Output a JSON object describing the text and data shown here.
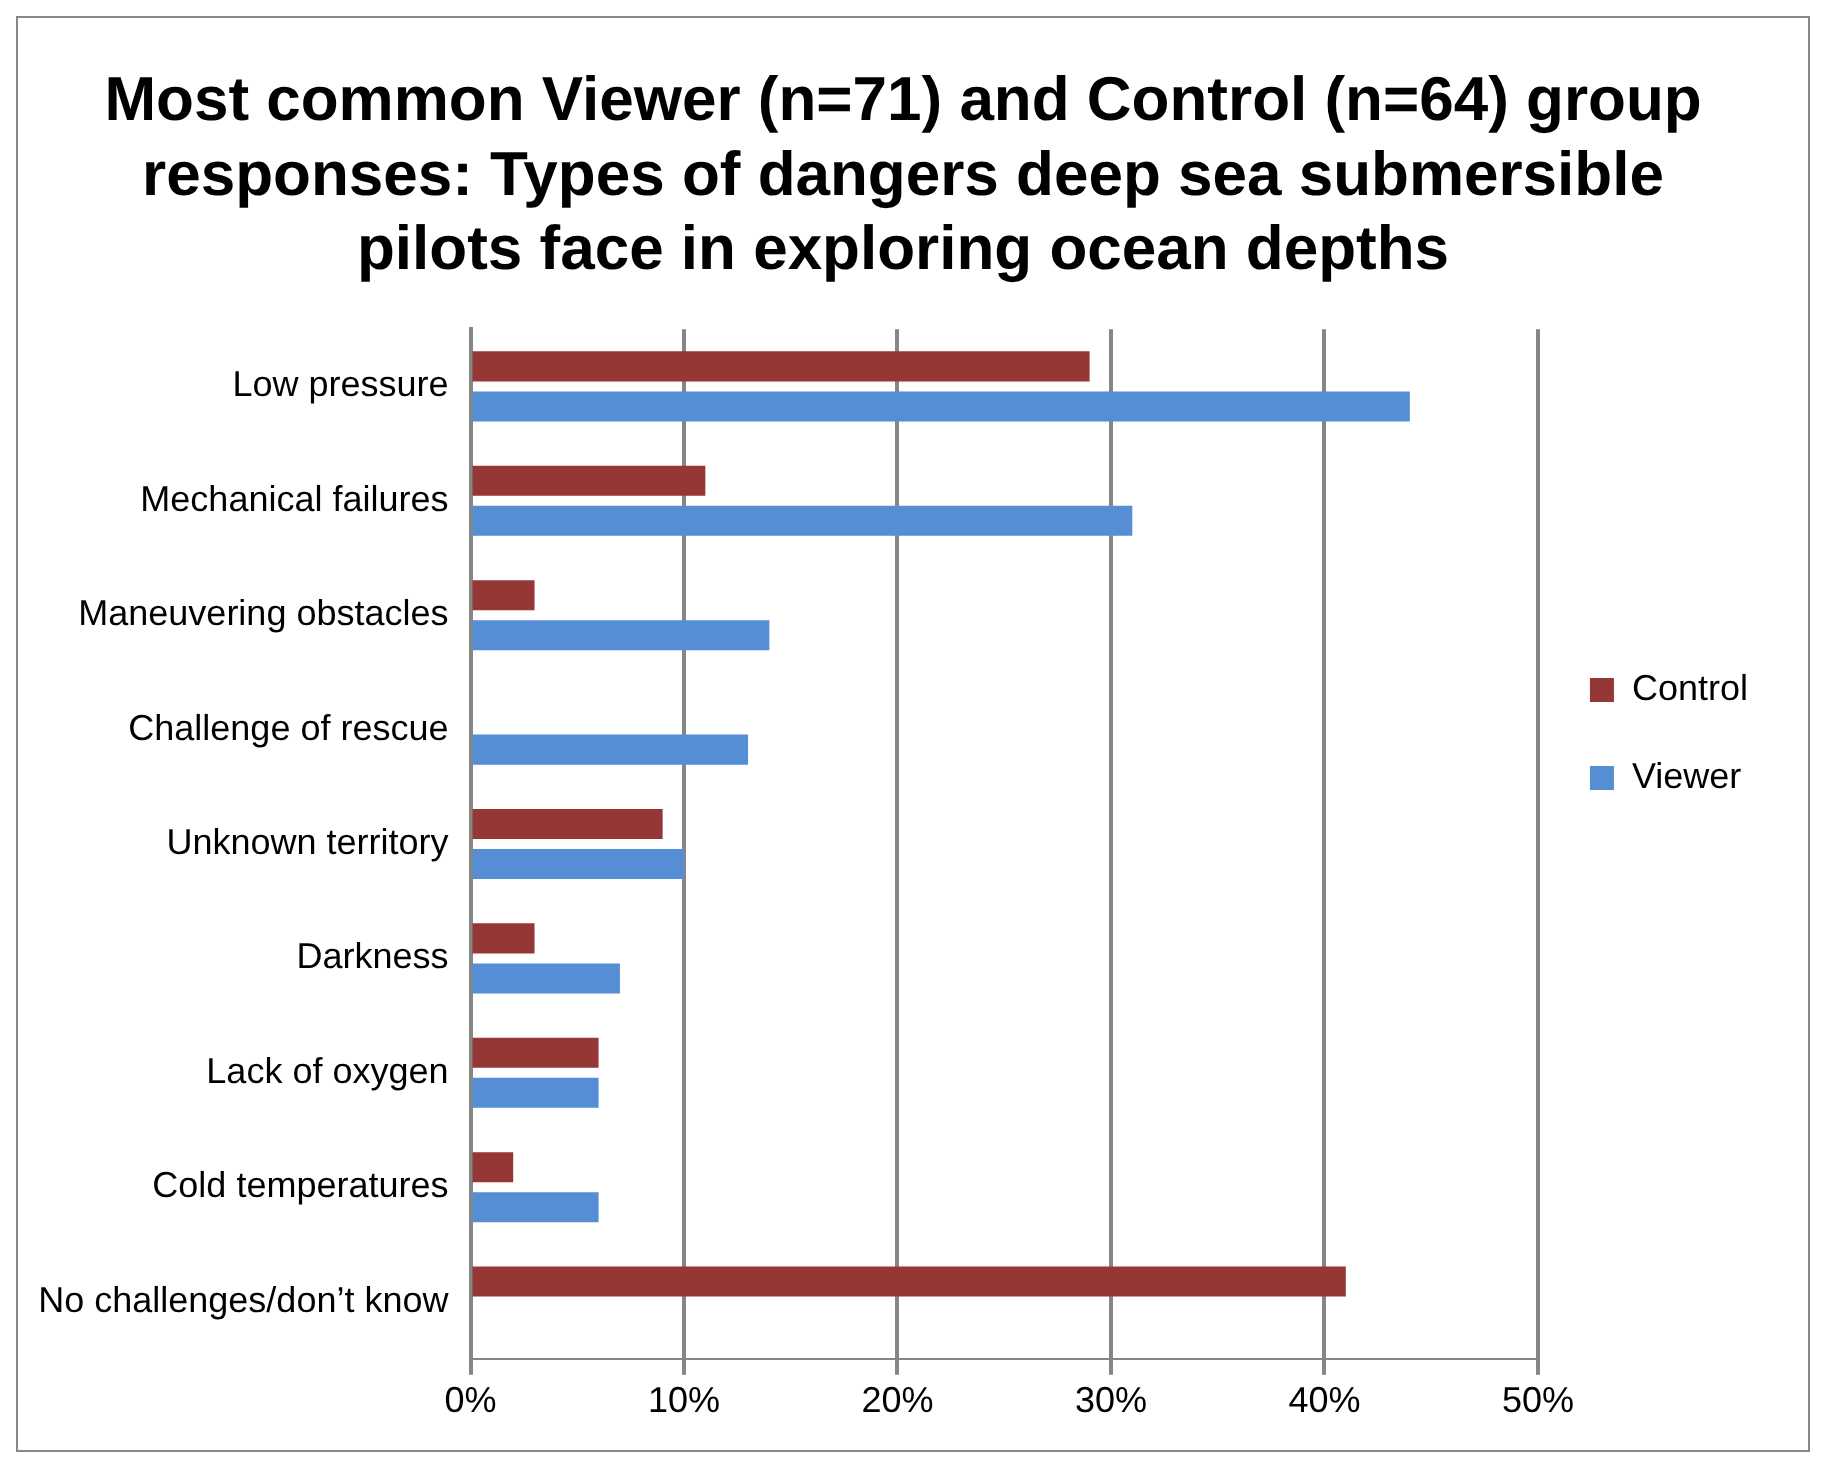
{
  "chart_data": {
    "type": "bar",
    "orientation": "horizontal",
    "title": "Most common Viewer (n=71) and Control (n=64) group responses: Types of dangers deep sea submersible pilots face in exploring ocean depths",
    "categories": [
      "Low pressure",
      "Mechanical failures",
      "Maneuvering obstacles",
      "Challenge of rescue",
      "Unknown territory",
      "Darkness",
      "Lack of oxygen",
      "Cold temperatures",
      "No challenges/don’t know"
    ],
    "series": [
      {
        "name": "Control",
        "color": "#953735",
        "values": [
          29,
          11,
          3,
          0,
          9,
          3,
          6,
          2,
          41
        ]
      },
      {
        "name": "Viewer",
        "color": "#558ed5",
        "values": [
          44,
          31,
          14,
          13,
          10,
          7,
          6,
          6,
          0
        ]
      }
    ],
    "xlim": [
      0,
      50
    ],
    "xticks": [
      {
        "value": 0,
        "label": "0%"
      },
      {
        "value": 10,
        "label": "10%"
      },
      {
        "value": 20,
        "label": "20%"
      },
      {
        "value": 30,
        "label": "30%"
      },
      {
        "value": 40,
        "label": "40%"
      },
      {
        "value": 50,
        "label": "50%"
      }
    ],
    "grid": "x",
    "legend": "right"
  }
}
